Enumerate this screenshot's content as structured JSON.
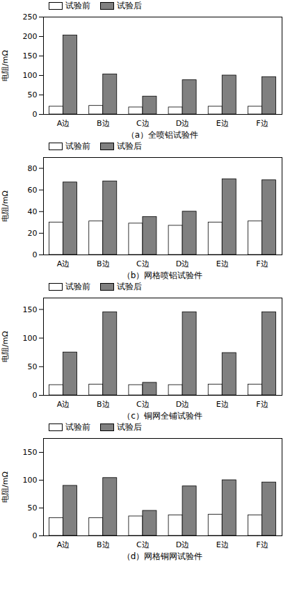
{
  "chart_data": [
    {
      "type": "bar",
      "title": "（a）全喷铝试验件",
      "ylabel": "电阻/mΩ",
      "categories": [
        "A边",
        "B边",
        "C边",
        "D边",
        "E边",
        "F边"
      ],
      "series": [
        {
          "name": "试验前",
          "color": "#ffffff",
          "values": [
            20,
            22,
            18,
            18,
            20,
            20
          ]
        },
        {
          "name": "试验后",
          "color": "#808080",
          "values": [
            203,
            103,
            46,
            88,
            100,
            96
          ]
        }
      ],
      "ylim": [
        0,
        250
      ],
      "yticks": [
        0,
        50,
        100,
        150,
        200,
        250
      ],
      "legend": "upper left"
    },
    {
      "type": "bar",
      "title": "（b）网格喷铝试验件",
      "ylabel": "电阻/mΩ",
      "categories": [
        "A边",
        "B边",
        "C边",
        "D边",
        "E边",
        "F边"
      ],
      "series": [
        {
          "name": "试验前",
          "color": "#ffffff",
          "values": [
            30,
            31,
            29,
            27,
            30,
            31
          ]
        },
        {
          "name": "试验后",
          "color": "#808080",
          "values": [
            67,
            68,
            35,
            40,
            70,
            69
          ]
        }
      ],
      "ylim": [
        0,
        90
      ],
      "yticks": [
        0,
        20,
        40,
        60,
        80
      ],
      "legend": "upper left"
    },
    {
      "type": "bar",
      "title": "（c）铜网全铺试验件",
      "ylabel": "电阻/mΩ",
      "categories": [
        "A边",
        "B边",
        "C边",
        "D边",
        "E边",
        "F边"
      ],
      "series": [
        {
          "name": "试验前",
          "color": "#ffffff",
          "values": [
            18,
            19,
            18,
            18,
            19,
            19
          ]
        },
        {
          "name": "试验后",
          "color": "#808080",
          "values": [
            75,
            145,
            22,
            145,
            74,
            145
          ]
        }
      ],
      "ylim": [
        0,
        170
      ],
      "yticks": [
        0,
        50,
        100,
        150
      ],
      "legend": "upper left"
    },
    {
      "type": "bar",
      "title": "（d）网格铜网试验件",
      "ylabel": "电阻/mΩ",
      "categories": [
        "A边",
        "B边",
        "C边",
        "D边",
        "E边",
        "F边"
      ],
      "series": [
        {
          "name": "试验前",
          "color": "#ffffff",
          "values": [
            32,
            32,
            35,
            37,
            38,
            37
          ]
        },
        {
          "name": "试验后",
          "color": "#808080",
          "values": [
            90,
            104,
            45,
            89,
            100,
            96
          ]
        }
      ],
      "ylim": [
        0,
        175
      ],
      "yticks": [
        0,
        50,
        100,
        150
      ],
      "legend": "upper left"
    }
  ]
}
